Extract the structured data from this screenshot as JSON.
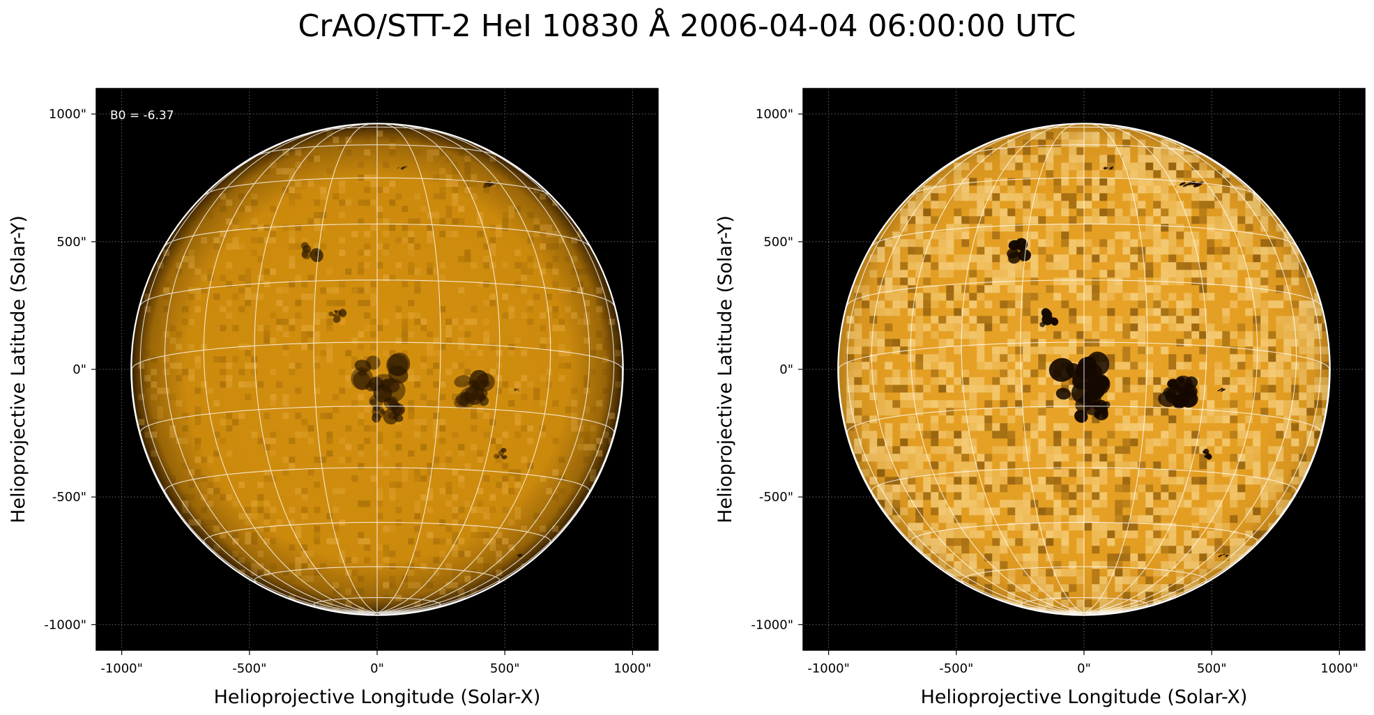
{
  "figure": {
    "title": "CrAO/STT-2 HeI 10830 Å 2006-04-04 06:00:00 UTC"
  },
  "colors": {
    "disk_base": "#d4900e",
    "disk_bright": "#f0b540",
    "disk_limb": "#3a2200",
    "sky": "#000000",
    "grid": "#ffffff",
    "limb_circle": "#ffffff"
  },
  "panels": [
    {
      "name": "left-panel",
      "annotation": "B0 = -6.37",
      "xlabel": "Helioprojective Longitude (Solar-X)",
      "ylabel": "Helioprojective Latitude (Solar-Y)",
      "xticks": [
        "-1000\"",
        "-500\"",
        "0\"",
        "500\"",
        "1000\""
      ],
      "yticks": [
        "1000\"",
        "500\"",
        "0\"",
        "-500\"",
        "-1000\""
      ],
      "contrast": "normal"
    },
    {
      "name": "right-panel",
      "annotation": "",
      "xlabel": "Helioprojective Longitude (Solar-X)",
      "ylabel": "Helioprojective Latitude (Solar-Y)",
      "xticks": [
        "-1000\"",
        "-500\"",
        "0\"",
        "500\"",
        "1000\""
      ],
      "yticks": [
        "1000\"",
        "500\"",
        "0\"",
        "-500\"",
        "-1000\""
      ],
      "contrast": "enhanced"
    }
  ],
  "image": {
    "solar_radius_arcsec": 960,
    "b0_deg": -6.37,
    "axis_range_arcsec": [
      -1100,
      1100
    ],
    "tick_values_arcsec": [
      -1000,
      -500,
      0,
      500,
      1000
    ],
    "grid_spacing_deg": 15,
    "features": [
      {
        "kind": "filament-cluster",
        "x": 0,
        "y": -30,
        "size": 110
      },
      {
        "kind": "filament-cluster",
        "x": 40,
        "y": -150,
        "size": 70
      },
      {
        "kind": "active-region",
        "x": 390,
        "y": -90,
        "size": 80
      },
      {
        "kind": "filament",
        "x": 420,
        "y": 720,
        "size": 45
      },
      {
        "kind": "filament",
        "x": 100,
        "y": 790,
        "size": 25
      },
      {
        "kind": "dark-patch",
        "x": -250,
        "y": 470,
        "size": 55
      },
      {
        "kind": "dark-patch",
        "x": -150,
        "y": 200,
        "size": 45
      },
      {
        "kind": "filament",
        "x": 540,
        "y": -80,
        "size": 20
      },
      {
        "kind": "dark-patch",
        "x": 480,
        "y": -330,
        "size": 25
      },
      {
        "kind": "filament",
        "x": 550,
        "y": -730,
        "size": 22
      }
    ]
  }
}
